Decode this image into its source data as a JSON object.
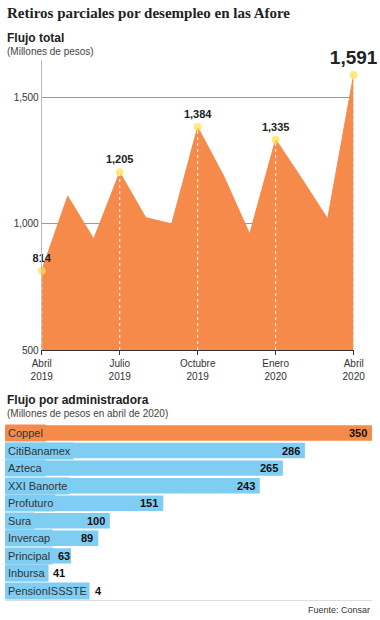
{
  "title": "Retiros parciales por desempleo en las Afore",
  "source": "Fuente: Consar",
  "chart_data": [
    {
      "type": "area",
      "title": "Flujo total",
      "subtitle": "(Millones de pesos)",
      "categories": [
        "Abril 2019",
        null,
        null,
        "Julio 2019",
        null,
        null,
        "Octubre 2019",
        null,
        null,
        "Enero 2020",
        null,
        null,
        "Abril 2020"
      ],
      "values": [
        814,
        1110,
        940,
        1205,
        1025,
        1000,
        1384,
        1190,
        960,
        1335,
        1180,
        1020,
        1591
      ],
      "value_labels": [
        "814",
        null,
        null,
        "1,205",
        null,
        null,
        "1,384",
        null,
        null,
        "1,335",
        null,
        null,
        "1,591"
      ],
      "color": "#f58a4b",
      "ylim": [
        500,
        1650
      ],
      "yticks": [
        500,
        {
          "value": 1000,
          "label": "1,000"
        },
        {
          "value": 1500,
          "label": "1,500"
        }
      ],
      "grid": true,
      "data_labels": true,
      "marker": "circle",
      "line_style": "solid"
    },
    {
      "type": "bar",
      "orientation": "horizontal",
      "title": "Flujo por administradora",
      "subtitle": "(Millones de pesos en abril de 2020)",
      "categories": [
        "Coppel",
        "CitiBanamex",
        "Azteca",
        "XXI Banorte",
        "Profuturo",
        "Sura",
        "Invercap",
        "Principal",
        "Inbursa",
        "PensionISSSTE"
      ],
      "values": [
        350,
        286,
        265,
        243,
        151,
        100,
        89,
        63,
        41,
        4
      ],
      "colors": [
        "#f58a4b",
        "#7fcdf2",
        "#7fcdf2",
        "#7fcdf2",
        "#7fcdf2",
        "#7fcdf2",
        "#7fcdf2",
        "#7fcdf2",
        "#7fcdf2",
        "#7fcdf2"
      ],
      "xlim": [
        0,
        350
      ],
      "data_labels": true,
      "tick_labels": false
    }
  ]
}
